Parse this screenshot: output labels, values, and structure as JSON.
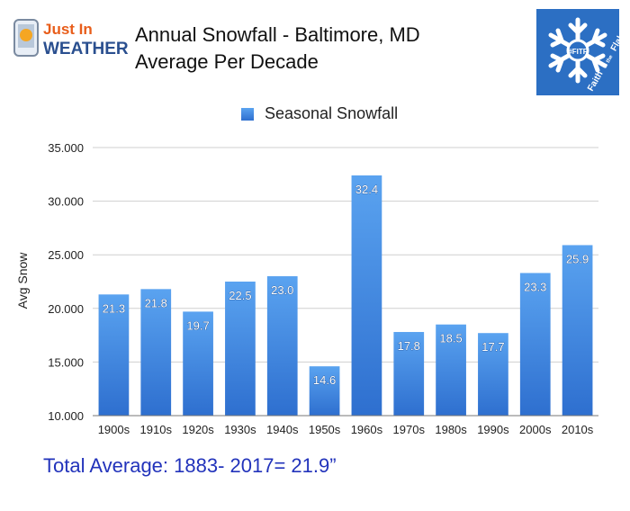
{
  "header": {
    "title_line1": "Annual Snowfall - Baltimore, MD",
    "title_line2": "Average Per Decade",
    "logo_left_line1": "Just In",
    "logo_left_line2": "WEATHER",
    "logo_right_line1": "Faith",
    "logo_right_line2": "in the",
    "logo_right_line3": "Flakes",
    "logo_right_badge": "#FITF"
  },
  "footer": {
    "total_average": "Total Average: 1883- 2017= 21.9”"
  },
  "colors": {
    "bar_top": "#5aa3f0",
    "bar_bottom": "#2e6fcf",
    "footer_text": "#2233bb",
    "logo_right_bg": "#2c6fc3"
  },
  "chart_data": {
    "type": "bar",
    "categories": [
      "1900s",
      "1910s",
      "1920s",
      "1930s",
      "1940s",
      "1950s",
      "1960s",
      "1970s",
      "1980s",
      "1990s",
      "2000s",
      "2010s"
    ],
    "series": [
      {
        "name": "Seasonal Snowfall",
        "values": [
          21.3,
          21.8,
          19.7,
          22.5,
          23.0,
          14.6,
          32.4,
          17.8,
          18.5,
          17.7,
          23.3,
          25.9
        ],
        "labels": [
          "21.3",
          "21.8",
          "19.7",
          "22.5",
          "23.0",
          "14.6",
          "32.4",
          "17.8",
          "18.5",
          "17.7",
          "23.3",
          "25.9"
        ]
      }
    ],
    "ylabel": "Avg Snow",
    "xlabel": "",
    "ylim": [
      10,
      35
    ],
    "yticks": [
      10,
      15,
      20,
      25,
      30,
      35
    ],
    "ytick_labels": [
      "10.000",
      "15.000",
      "20.000",
      "25.000",
      "30.000",
      "35.000"
    ],
    "grid": true,
    "legend": "top-center"
  }
}
